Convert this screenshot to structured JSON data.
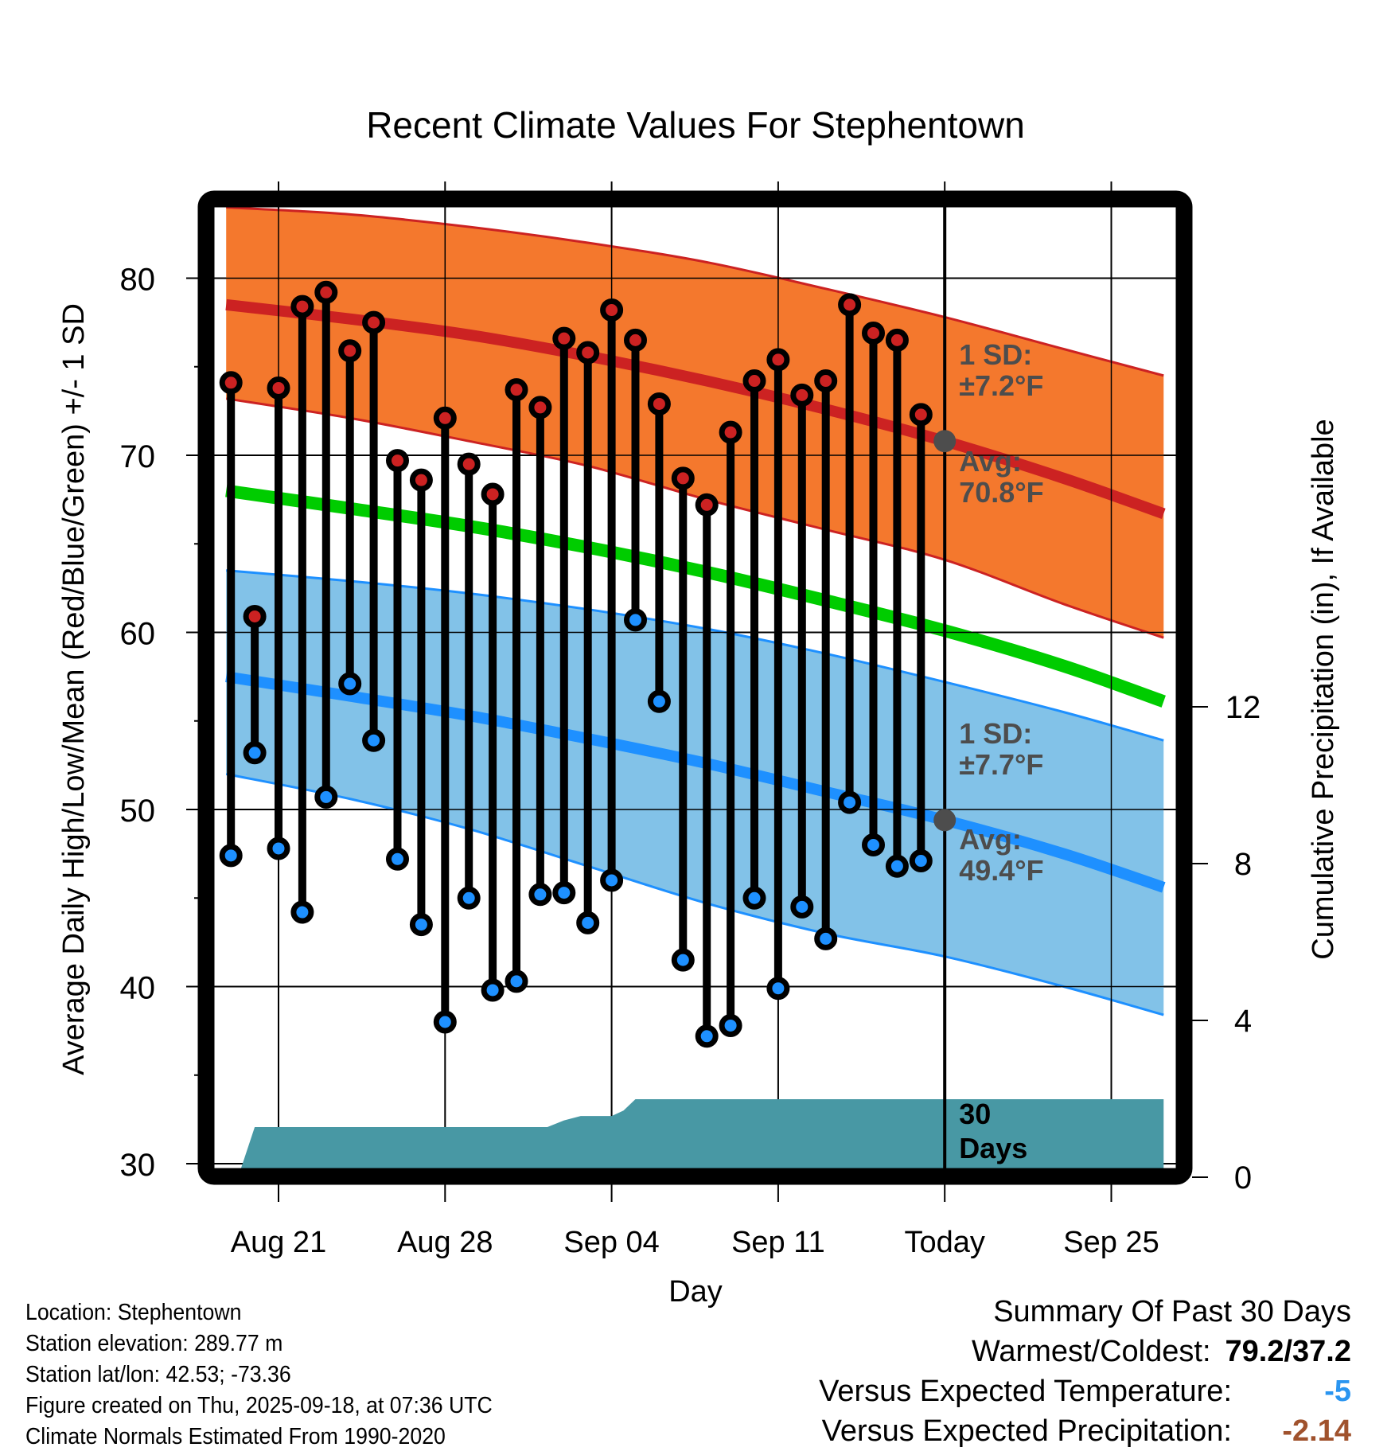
{
  "chart_data": {
    "type": "line",
    "title": "Recent Climate Values For Stephentown",
    "xlabel": "Day",
    "ylabel": "Average Daily High/Low/Mean (Red/Blue/Green) +/- 1 SD",
    "y2label": "Cumulative Precipitation (in), If Available",
    "ylim": [
      29.7,
      83.9
    ],
    "y2lim": [
      0,
      13.8
    ],
    "yticks": [
      30,
      40,
      50,
      60,
      70,
      80
    ],
    "y2ticks": [
      0,
      4,
      8,
      12
    ],
    "xticks": [
      {
        "day": 2,
        "label": "Aug 21"
      },
      {
        "day": 9,
        "label": "Aug 28"
      },
      {
        "day": 16,
        "label": "Sep 04"
      },
      {
        "day": 23,
        "label": "Sep 11"
      },
      {
        "day": 30,
        "label": "Today"
      },
      {
        "day": 37,
        "label": "Sep 25"
      }
    ],
    "xrange_days": [
      -0.2,
      39.2
    ],
    "day0": "Aug 19",
    "today_day": 30,
    "grid": true,
    "dates": [
      "Aug 19",
      "Aug 20",
      "Aug 21",
      "Aug 22",
      "Aug 23",
      "Aug 24",
      "Aug 25",
      "Aug 26",
      "Aug 27",
      "Aug 28",
      "Aug 29",
      "Aug 30",
      "Aug 31",
      "Sep 01",
      "Sep 02",
      "Sep 03",
      "Sep 04",
      "Sep 05",
      "Sep 06",
      "Sep 07",
      "Sep 08",
      "Sep 09",
      "Sep 10",
      "Sep 11",
      "Sep 12",
      "Sep 13",
      "Sep 14",
      "Sep 15",
      "Sep 16",
      "Sep 17"
    ],
    "series": [
      {
        "name": "Daily High",
        "color": "#cc2222",
        "values": [
          74.1,
          60.9,
          73.8,
          78.4,
          79.2,
          75.9,
          77.5,
          69.7,
          68.6,
          72.1,
          69.5,
          67.8,
          73.7,
          72.7,
          76.6,
          75.8,
          78.2,
          76.5,
          72.9,
          68.7,
          67.2,
          71.3,
          74.2,
          75.4,
          73.4,
          74.2,
          78.5,
          76.9,
          76.5,
          72.3
        ]
      },
      {
        "name": "Daily Low",
        "color": "#1e90ff",
        "values": [
          47.4,
          53.2,
          47.8,
          44.2,
          50.7,
          57.1,
          53.9,
          47.2,
          43.5,
          38.0,
          45.0,
          39.8,
          40.3,
          45.2,
          45.3,
          43.6,
          46.0,
          60.7,
          56.1,
          41.5,
          37.2,
          37.8,
          45.0,
          39.9,
          44.5,
          42.7,
          50.4,
          48.0,
          46.8,
          47.1
        ]
      }
    ],
    "normals": {
      "days": [
        -0.2,
        5,
        10,
        15,
        20,
        25,
        30,
        35,
        39.2
      ],
      "high_upper": [
        84.0,
        83.6,
        82.9,
        82.0,
        80.9,
        79.4,
        77.8,
        76.0,
        74.5
      ],
      "high_avg": [
        78.5,
        77.7,
        76.8,
        75.6,
        74.2,
        72.6,
        70.8,
        68.7,
        66.7
      ],
      "high_lower": [
        73.2,
        72.1,
        70.8,
        69.4,
        67.5,
        65.8,
        64.1,
        61.6,
        59.7
      ],
      "mean": [
        68.0,
        67.0,
        66.0,
        64.8,
        63.4,
        61.8,
        60.1,
        58.1,
        56.1
      ],
      "low_upper": [
        63.5,
        62.9,
        62.2,
        61.3,
        60.2,
        58.8,
        57.2,
        55.5,
        53.9
      ],
      "low_avg": [
        57.5,
        56.4,
        55.3,
        54.0,
        52.6,
        51.0,
        49.4,
        47.5,
        45.6
      ],
      "low_lower": [
        52.0,
        50.6,
        48.9,
        46.8,
        44.7,
        43.0,
        41.7,
        40.0,
        38.4
      ]
    },
    "precip": {
      "days": [
        -0.2,
        0.3,
        1.0,
        13.3,
        14.0,
        14.7,
        16.0,
        16.5,
        17.0,
        17.8,
        39.2
      ],
      "values": [
        0,
        0,
        1.28,
        1.28,
        1.45,
        1.56,
        1.56,
        1.7,
        1.99,
        1.99,
        1.99
      ]
    },
    "annotations": {
      "high_sd": "1 SD:",
      "high_sd_val": "±7.2°F",
      "high_avg": "Avg:",
      "high_avg_val": "70.8°F",
      "low_sd": "1 SD:",
      "low_sd_val": "±7.7°F",
      "low_avg": "Avg:",
      "low_avg_val": "49.4°F",
      "today_high_avg": 70.8,
      "today_low_avg": 49.4,
      "period_line1": "30",
      "period_line2": "Days"
    },
    "colors": {
      "high_band": "#f4782d",
      "high_line": "#cc2222",
      "mean_line": "#00cc00",
      "low_band": "#82c2e8",
      "low_line": "#1e90ff",
      "precip": "#4898a4",
      "annotation": "#4d4d4d"
    }
  },
  "info": {
    "location": "Location: Stephentown",
    "elevation": "Station elevation: 289.77 m",
    "latlon": "Station lat/lon: 42.53; -73.36",
    "created": "Figure created on Thu, 2025-09-18, at 07:36 UTC",
    "normals": "Climate Normals Estimated From 1990-2020"
  },
  "summary": {
    "title": "Summary Of Past 30 Days",
    "warm_cold_label": "Warmest/Coldest:",
    "warm_cold_value": "79.2/37.2",
    "temp_label": "Versus Expected Temperature:",
    "temp_value": "-5",
    "temp_color": "#2a95f0",
    "precip_label": "Versus Expected Precipitation:",
    "precip_value": "-2.14",
    "precip_color": "#a0522d"
  }
}
